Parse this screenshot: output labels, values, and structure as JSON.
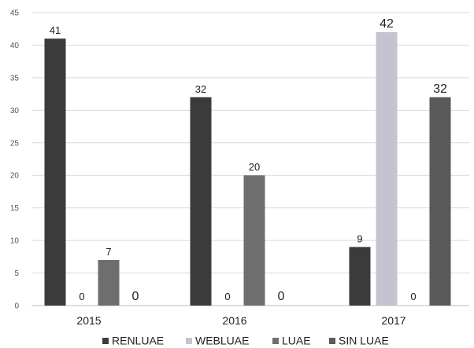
{
  "chart_data": {
    "type": "bar",
    "title": "",
    "xlabel": "",
    "ylabel": "",
    "ylim": [
      0,
      45
    ],
    "y_ticks": [
      0,
      5,
      10,
      15,
      20,
      25,
      30,
      35,
      40,
      45
    ],
    "grid": true,
    "legend_position": "bottom",
    "categories": [
      "2015",
      "2016",
      "2017"
    ],
    "series": [
      {
        "name": "RENLUAE",
        "color": "#3b3b3b",
        "values": [
          41,
          32,
          9
        ],
        "labels": [
          "41",
          "32",
          "9"
        ]
      },
      {
        "name": "WEBLUAE",
        "color": "#c4c4d0",
        "values": [
          0,
          0,
          42
        ],
        "labels": [
          "0",
          "0",
          "42"
        ]
      },
      {
        "name": "LUAE",
        "color": "#6e6e6e",
        "values": [
          7,
          20,
          0
        ],
        "labels": [
          "7",
          "20",
          "0"
        ]
      },
      {
        "name": "SIN LUAE",
        "color": "#5a5a5a",
        "values": [
          0,
          0,
          32
        ],
        "labels": [
          "0",
          "0",
          "32"
        ]
      }
    ]
  }
}
